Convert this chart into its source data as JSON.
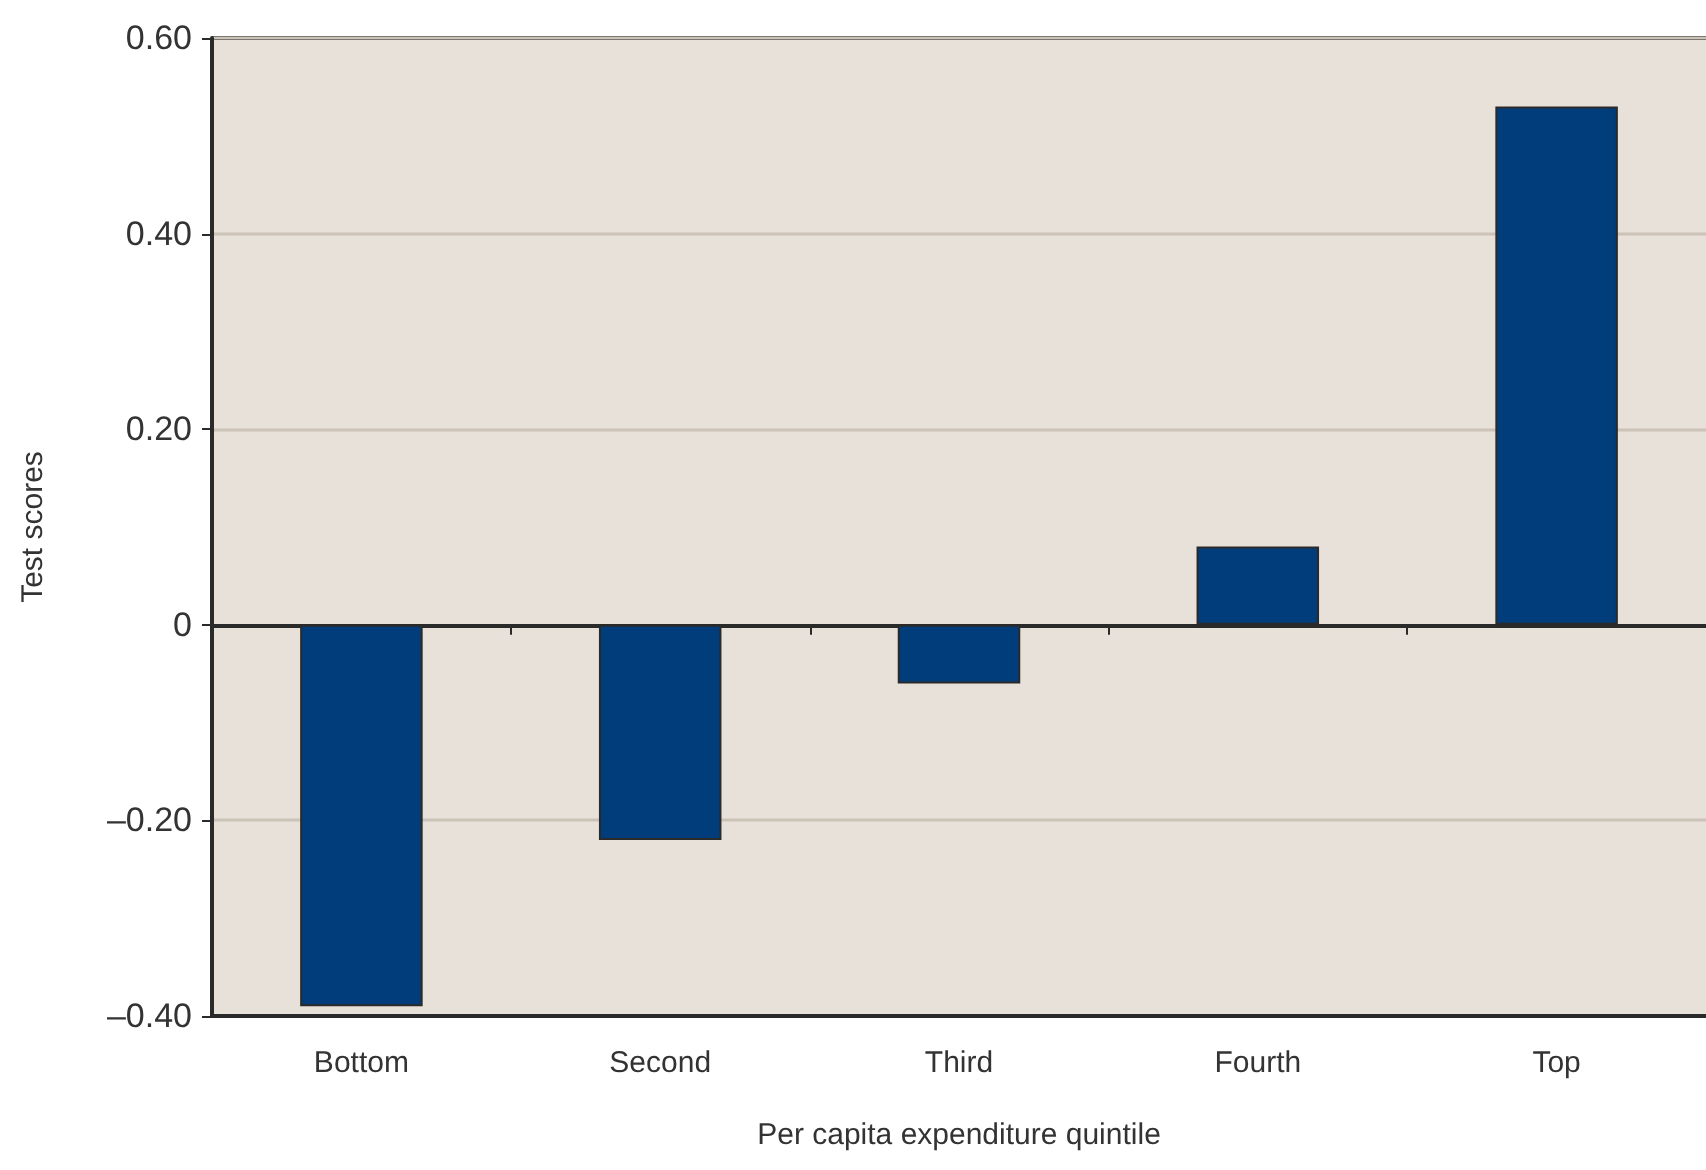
{
  "chart_data": {
    "type": "bar",
    "xlabel": "Per capita expenditure quintile",
    "ylabel": "Test scores",
    "categories": [
      "Bottom",
      "Second",
      "Third",
      "Fourth",
      "Top"
    ],
    "values": [
      -0.39,
      -0.22,
      -0.06,
      0.08,
      0.53
    ],
    "color": "#003d7a",
    "ylim": [
      -0.4,
      0.6
    ],
    "yticks": [
      {
        "value": -0.4,
        "label": "–0.40"
      },
      {
        "value": -0.2,
        "label": "–0.20"
      },
      0,
      {
        "value": 0.2,
        "label": "0.20"
      },
      {
        "value": 0.4,
        "label": "0.40"
      },
      {
        "value": 0.6,
        "label": "0.60"
      }
    ],
    "grid": "y"
  }
}
